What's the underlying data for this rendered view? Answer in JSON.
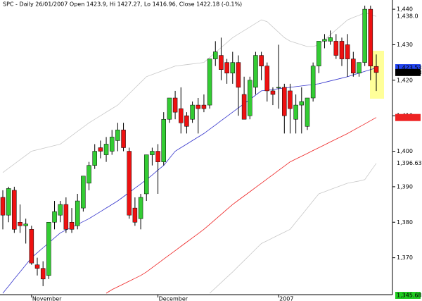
{
  "chart_data": {
    "type": "candlestick",
    "title": "SPC - Daily 26/01/2007 Open 1423.9, Hi 1427.27, Lo 1416.96, Close 1422.18 (-0.1%)",
    "categories": [
      null,
      null,
      null,
      null,
      null,
      "November",
      null,
      null,
      null,
      null,
      null,
      null,
      null,
      null,
      null,
      null,
      null,
      null,
      null,
      null,
      null,
      null,
      null,
      null,
      null,
      null,
      null,
      "December",
      null,
      null,
      null,
      null,
      null,
      null,
      null,
      null,
      null,
      null,
      null,
      null,
      null,
      null,
      null,
      null,
      null,
      null,
      null,
      null,
      "2007",
      null,
      null,
      null,
      null,
      null,
      null,
      null,
      null,
      null,
      null,
      null,
      null,
      null,
      null,
      null,
      null,
      null
    ],
    "open": [
      1387,
      1382,
      1389,
      1380,
      1379,
      1378,
      1368,
      1367,
      1365,
      1380,
      1382,
      1385,
      1380,
      1379,
      1384,
      1391,
      1396,
      1401,
      1399,
      1400,
      1403,
      1406,
      1400,
      1384,
      1381,
      1388,
      1399,
      1400,
      1397,
      1409,
      1415,
      1412,
      1410,
      1409,
      1413,
      1413,
      1413,
      1426,
      1427,
      1425,
      1422,
      1425,
      1416,
      1410,
      1418,
      1427,
      1424,
      1417,
      1418,
      1418,
      1417,
      1409,
      1413,
      1407,
      1415,
      1424,
      1431,
      1431,
      1431,
      1431,
      1430,
      1426,
      1422,
      1425,
      1440,
      1423.9
    ],
    "high": [
      1389,
      1390,
      1390,
      1385,
      1381,
      1379,
      1370,
      1369,
      1380,
      1386,
      1386,
      1387,
      1384,
      1388,
      1393,
      1397,
      1402,
      1403,
      1404,
      1406,
      1408,
      1408,
      1401,
      1387,
      1388,
      1399,
      1401,
      1402,
      1411,
      1415,
      1417,
      1418,
      1411,
      1414,
      1415,
      1416,
      1426,
      1431,
      1432,
      1426,
      1428,
      1427,
      1421,
      1421,
      1428,
      1428,
      1425,
      1418,
      1430,
      1419,
      1419,
      1416,
      1418,
      1415,
      1425,
      1431,
      1433,
      1434,
      1433,
      1432,
      1433,
      1428,
      1425,
      1441,
      1441,
      1427.27
    ],
    "low": [
      1378,
      1380,
      1377,
      1377,
      1374,
      1368,
      1365,
      1362,
      1364,
      1378,
      1380,
      1377,
      1377,
      1378,
      1383,
      1389,
      1395,
      1398,
      1397,
      1399,
      1400,
      1400,
      1381,
      1379,
      1378,
      1386,
      1396,
      1388,
      1396,
      1408,
      1409,
      1405,
      1405,
      1408,
      1405,
      1411,
      1412,
      1424,
      1420,
      1419,
      1419,
      1410,
      1409,
      1409,
      1416,
      1420,
      1414,
      1413,
      1412,
      1405,
      1405,
      1405,
      1405,
      1406,
      1414,
      1422,
      1429,
      1430,
      1426,
      1424,
      1421,
      1421,
      1421,
      1424,
      1420,
      1416.96
    ],
    "close": [
      1382,
      1389.5,
      1378,
      1379,
      1379.5,
      1368.5,
      1367,
      1364,
      1380,
      1383,
      1385,
      1378,
      1378,
      1386,
      1393,
      1396,
      1400,
      1400,
      1402,
      1404,
      1406,
      1401,
      1382,
      1380,
      1387,
      1399,
      1400,
      1397,
      1409,
      1415,
      1411,
      1408,
      1407,
      1413,
      1412,
      1412,
      1426,
      1428,
      1423,
      1422,
      1425,
      1418,
      1409,
      1420,
      1427,
      1424,
      1417,
      1416,
      1418,
      1410,
      1412,
      1413,
      1414,
      1415,
      1424,
      1431,
      1431.5,
      1432,
      1427,
      1426,
      1426,
      1422,
      1425,
      1440,
      1424,
      1422.18
    ],
    "up_color": "#33cc33",
    "down_color": "#ee1111",
    "series": [
      {
        "color": "#3333cc",
        "values": [
          1360,
          1362,
          1364,
          1366,
          1368,
          1370,
          1371.4,
          1372.8,
          1374.2,
          1375.6,
          1377,
          1377.8,
          1378.6,
          1379.4,
          1380.2,
          1381,
          1382,
          1383,
          1384,
          1385,
          1386,
          1387.2,
          1388.4,
          1389.6,
          1390.8,
          1392,
          1393.3,
          1394.7,
          1396,
          1398,
          1400,
          1401,
          1402,
          1403,
          1404,
          1405,
          1406.2,
          1407.4,
          1408.6,
          1409.8,
          1411,
          1412.2,
          1413.4,
          1414.6,
          1415.8,
          1417,
          1417.2,
          1417.4,
          1417.6,
          1417.8,
          1418,
          1418.2,
          1418.4,
          1418.6,
          1418.8,
          1419,
          1419.4,
          1419.8,
          1420.2,
          1420.6,
          1421,
          1421.5,
          1422,
          1422.5,
          1423,
          1423.5
        ]
      },
      {
        "color": "#ee2222",
        "values": [
          null,
          null,
          null,
          null,
          null,
          null,
          null,
          null,
          null,
          null,
          null,
          null,
          null,
          null,
          null,
          null,
          null,
          null,
          1360,
          1361,
          1361.8,
          1362.6,
          1363.4,
          1364.2,
          1365,
          1366,
          1367.2,
          1368.4,
          1369.6,
          1370.8,
          1372,
          1373.2,
          1374.4,
          1375.6,
          1376.8,
          1378,
          1379.4,
          1380.8,
          1382.2,
          1383.6,
          1385,
          1386.2,
          1387.4,
          1388.6,
          1389.8,
          1391,
          1392.2,
          1393.4,
          1394.6,
          1395.8,
          1397,
          1397.8,
          1398.6,
          1399.4,
          1400.2,
          1401,
          1401.8,
          1402.6,
          1403.4,
          1404.2,
          1405,
          1405.9,
          1406.8,
          1407.7,
          1408.6,
          1409.5
        ]
      },
      {
        "color": "#c8c8c8",
        "values": [
          1394,
          1395.2,
          1396.4,
          1397.6,
          1398.8,
          1400,
          1400.4,
          1400.8,
          1401.2,
          1401.6,
          1402,
          1403.2,
          1404.4,
          1405.6,
          1406.8,
          1408,
          1409,
          1410,
          1411,
          1412,
          1413,
          1414.6,
          1416.2,
          1417.8,
          1419.4,
          1421,
          1421.6,
          1422.2,
          1422.8,
          1423.4,
          1424,
          1424.2,
          1424.4,
          1424.6,
          1424.8,
          1425,
          1426.4,
          1427.8,
          1429.2,
          1430.6,
          1432,
          1433,
          1434,
          1435,
          1436,
          1437,
          1436.5,
          1435,
          1433.5,
          1432,
          1431,
          1430.5,
          1430,
          1429.5,
          1429.5,
          1430,
          1431.4,
          1432.8,
          1434.2,
          1435.6,
          1437,
          1437.7,
          1438.3,
          1439,
          1438.5,
          1438
        ]
      },
      {
        "color": "#c8c8c8",
        "values": [
          null,
          null,
          null,
          null,
          null,
          null,
          null,
          null,
          null,
          null,
          null,
          null,
          null,
          null,
          null,
          null,
          null,
          null,
          null,
          null,
          null,
          null,
          null,
          null,
          null,
          null,
          null,
          null,
          null,
          null,
          null,
          null,
          null,
          null,
          null,
          null,
          1360,
          1361.5,
          1363,
          1364.5,
          1366,
          1367.6,
          1369.2,
          1370.8,
          1372.4,
          1374,
          1374.8,
          1375.6,
          1376.4,
          1377.2,
          1378,
          1380,
          1382,
          1384,
          1386,
          1388,
          1388.6,
          1389.2,
          1389.8,
          1390.4,
          1391,
          1391.3,
          1391.6,
          1392,
          1394.3,
          1396.6
        ]
      }
    ],
    "badges": [
      {
        "value": 1438,
        "label": "1,438.0",
        "color": "#ffffff",
        "text_color": "#000000"
      },
      {
        "value": 1423.53,
        "label": "1,423.53",
        "color": "#2244ee",
        "text_color": "#ffffff"
      },
      {
        "value": 1422.18,
        "label": "1,422.18",
        "color": "#000000",
        "text_color": "#ffffff"
      },
      {
        "value": 1409.5,
        "color": "#ee2222"
      },
      {
        "value": 1396.63,
        "label": "1,396.63",
        "color": "#ffffff",
        "text_color": "#000000"
      },
      {
        "value": 1345.68,
        "label": "1,345.68",
        "color": "#22cc22",
        "text_color": "#000000"
      }
    ],
    "ylim": [
      1359.6,
      1442.6
    ],
    "yticks": [
      {
        "value": 1370,
        "label": "1,370"
      },
      {
        "value": 1380,
        "label": "1,380"
      },
      {
        "value": 1390,
        "label": "1,390"
      },
      {
        "value": 1400,
        "label": "1,400"
      },
      {
        "value": 1410,
        "label": "1,410"
      },
      {
        "value": 1420,
        "label": "1,420"
      },
      {
        "value": 1430,
        "label": "1,430"
      },
      {
        "value": 1440,
        "label": "1,440"
      }
    ]
  }
}
